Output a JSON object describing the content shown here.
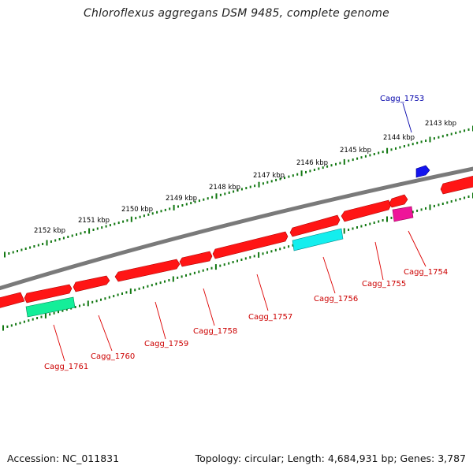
{
  "title": "Chloroflexus aggregans DSM 9485, complete genome",
  "footer": {
    "accession": "Accession: NC_011831",
    "summary": "Topology: circular; Length: 4,684,931 bp; Genes: 3,787"
  },
  "scale_labels": [
    "2143 kbp",
    "2144 kbp",
    "2145 kbp",
    "2146 kbp",
    "2147 kbp",
    "2148 kbp",
    "2149 kbp",
    "2150 kbp",
    "2151 kbp",
    "2152 kbp"
  ],
  "gene_labels": {
    "cagg_1753": "Cagg_1753",
    "cagg_1754": "Cagg_1754",
    "cagg_1755": "Cagg_1755",
    "cagg_1756": "Cagg_1756",
    "cagg_1757": "Cagg_1757",
    "cagg_1758": "Cagg_1758",
    "cagg_1759": "Cagg_1759",
    "cagg_1760": "Cagg_1760",
    "cagg_1761": "Cagg_1761"
  },
  "colors": {
    "backbone": "#808080",
    "cds": "#ff1010",
    "blue_feature": "#1010ee",
    "cyan_feature": "#10eeee",
    "green_feature": "#10ee99",
    "magenta_feature": "#ee1099",
    "ticks": "#117711",
    "label_red": "#cc0000",
    "label_blue": "#0000aa"
  }
}
